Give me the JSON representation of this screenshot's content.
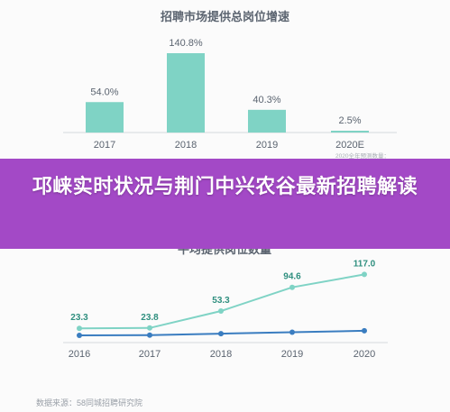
{
  "banner": {
    "title": "邛崃实时状况与荆门中兴农谷最新招聘解读"
  },
  "chart_data": [
    {
      "type": "bar",
      "title": "招聘市场提供总岗位增速",
      "categories": [
        "2017",
        "2018",
        "2019",
        "2020E"
      ],
      "values": [
        54.0,
        140.8,
        40.3,
        2.5
      ],
      "value_labels": [
        "54.0%",
        "140.8%",
        "40.3%",
        "2.5%"
      ],
      "note_lines": [
        "2020全年预测数量：",
        "根据前四季度数据预测"
      ],
      "colors": {
        "bar": "#7fd3c5",
        "text": "#5b6470"
      }
    },
    {
      "type": "line",
      "title": "平均提供岗位数量",
      "x": [
        "2016",
        "2017",
        "2018",
        "2019",
        "2020"
      ],
      "series": [
        {
          "values": [
            23.3,
            23.8,
            53.3,
            94.6,
            117.0
          ],
          "labels": [
            "23.3",
            "23.8",
            "53.3",
            "94.6",
            "117.0"
          ],
          "color": "#7fd3c5"
        },
        {
          "values": [
            11.0,
            11.5,
            14.0,
            16.5,
            19.0
          ],
          "color": "#3a7dc0"
        }
      ],
      "colors": {
        "label": "#2f8f7f"
      }
    }
  ],
  "source": "数据来源：58同城招聘研究院"
}
